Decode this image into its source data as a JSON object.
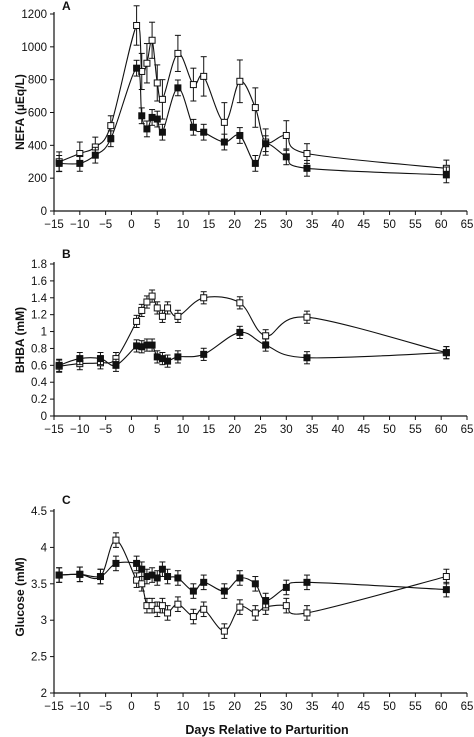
{
  "xlabel": "Days Relative to Parturition",
  "chart_data": [
    {
      "type": "line",
      "panel": "A",
      "ylabel": "NEFA (µEq/L)",
      "xlim": [
        -15,
        65
      ],
      "xticks": [
        -15,
        -10,
        -5,
        0,
        5,
        10,
        15,
        20,
        25,
        30,
        35,
        40,
        45,
        50,
        55,
        60,
        65
      ],
      "xtick_labels": [
        "−15",
        "−10",
        "−5",
        "0",
        "5",
        "10",
        "15",
        "20",
        "25",
        "30",
        "35",
        "40",
        "45",
        "50",
        "55",
        "60",
        "65"
      ],
      "ylim": [
        0,
        1200
      ],
      "yticks": [
        0,
        200,
        400,
        600,
        800,
        1000,
        1200
      ],
      "ytick_labels": [
        "0",
        "200",
        "400",
        "600",
        "800",
        "1000",
        "1200"
      ],
      "series": [
        {
          "marker": "open-square",
          "x": [
            -14,
            -10,
            -7,
            -4,
            1,
            2,
            3,
            4,
            5,
            6,
            9,
            12,
            14,
            18,
            21,
            24,
            26,
            30,
            34,
            61
          ],
          "y": [
            300,
            350,
            390,
            520,
            1130,
            850,
            900,
            1040,
            780,
            680,
            960,
            770,
            820,
            540,
            790,
            630,
            420,
            460,
            350,
            260
          ],
          "err": [
            60,
            70,
            60,
            60,
            120,
            110,
            120,
            110,
            110,
            120,
            110,
            100,
            120,
            120,
            130,
            120,
            80,
            90,
            60,
            50
          ]
        },
        {
          "marker": "filled-square",
          "x": [
            -14,
            -10,
            -7,
            -4,
            1,
            2,
            3,
            4,
            5,
            6,
            9,
            12,
            14,
            18,
            21,
            24,
            26,
            30,
            34,
            61
          ],
          "y": [
            290,
            290,
            340,
            440,
            870,
            580,
            500,
            570,
            560,
            480,
            750,
            510,
            480,
            420,
            460,
            290,
            410,
            330,
            260,
            220
          ]
        }
      ]
    },
    {
      "type": "line",
      "panel": "B",
      "ylabel": "BHBA (mM)",
      "xlim": [
        -15,
        65
      ],
      "xticks": [
        -15,
        -10,
        -5,
        0,
        5,
        10,
        15,
        20,
        25,
        30,
        35,
        40,
        45,
        50,
        55,
        60,
        65
      ],
      "xtick_labels": [
        "−15",
        "−10",
        "−5",
        "0",
        "5",
        "10",
        "15",
        "20",
        "25",
        "30",
        "35",
        "40",
        "45",
        "50",
        "55",
        "60",
        "65"
      ],
      "ylim": [
        0,
        1.8
      ],
      "yticks": [
        0,
        0.2,
        0.4,
        0.6,
        0.8,
        1,
        1.2,
        1.4,
        1.6,
        1.8
      ],
      "ytick_labels": [
        "0",
        "0.2",
        "0.4",
        "0.6",
        "0.8",
        "1",
        "1.2",
        "1.4",
        "1.6",
        "1.8"
      ],
      "series": [
        {
          "marker": "open-square",
          "x": [
            -14,
            -10,
            -6,
            -3,
            1,
            2,
            3,
            4,
            5,
            6,
            7,
            9,
            14,
            21,
            26,
            34,
            61
          ],
          "y": [
            0.59,
            0.62,
            0.63,
            0.68,
            1.12,
            1.25,
            1.35,
            1.42,
            1.28,
            1.18,
            1.28,
            1.18,
            1.4,
            1.34,
            0.95,
            1.17,
            0.75
          ]
        },
        {
          "marker": "filled-square",
          "x": [
            -14,
            -10,
            -6,
            -3,
            1,
            2,
            3,
            4,
            5,
            6,
            7,
            9,
            14,
            21,
            26,
            34,
            61
          ],
          "y": [
            0.6,
            0.68,
            0.68,
            0.6,
            0.83,
            0.82,
            0.84,
            0.84,
            0.7,
            0.68,
            0.65,
            0.7,
            0.73,
            0.99,
            0.84,
            0.69,
            0.75
          ]
        }
      ]
    },
    {
      "type": "line",
      "panel": "C",
      "ylabel": "Glucose (mM)",
      "xlim": [
        -15,
        65
      ],
      "xticks": [
        -15,
        -10,
        -5,
        0,
        5,
        10,
        15,
        20,
        25,
        30,
        35,
        40,
        45,
        50,
        55,
        60,
        65
      ],
      "xtick_labels": [
        "−15",
        "−10",
        "−5",
        "0",
        "5",
        "10",
        "15",
        "20",
        "25",
        "30",
        "35",
        "40",
        "45",
        "50",
        "55",
        "60",
        "65"
      ],
      "ylim": [
        2,
        4.5
      ],
      "yticks": [
        2,
        2.5,
        3,
        3.5,
        4,
        4.5
      ],
      "ytick_labels": [
        "2",
        "2.5",
        "3",
        "3.5",
        "4",
        "4.5"
      ],
      "series": [
        {
          "marker": "open-square",
          "x": [
            -14,
            -10,
            -6,
            -3,
            1,
            2,
            3,
            4,
            5,
            6,
            7,
            9,
            12,
            14,
            18,
            21,
            24,
            26,
            30,
            34,
            61
          ],
          "y": [
            3.62,
            3.63,
            3.6,
            4.1,
            3.55,
            3.5,
            3.2,
            3.2,
            3.15,
            3.2,
            3.1,
            3.22,
            3.05,
            3.15,
            2.85,
            3.18,
            3.1,
            3.18,
            3.2,
            3.1,
            3.6
          ]
        },
        {
          "marker": "filled-square",
          "x": [
            -14,
            -10,
            -6,
            -3,
            1,
            2,
            3,
            4,
            5,
            6,
            7,
            9,
            12,
            14,
            18,
            21,
            24,
            26,
            30,
            34,
            61
          ],
          "y": [
            3.62,
            3.63,
            3.6,
            3.78,
            3.78,
            3.7,
            3.6,
            3.62,
            3.58,
            3.7,
            3.6,
            3.58,
            3.4,
            3.52,
            3.4,
            3.58,
            3.5,
            3.27,
            3.45,
            3.52,
            3.42
          ]
        }
      ]
    }
  ]
}
